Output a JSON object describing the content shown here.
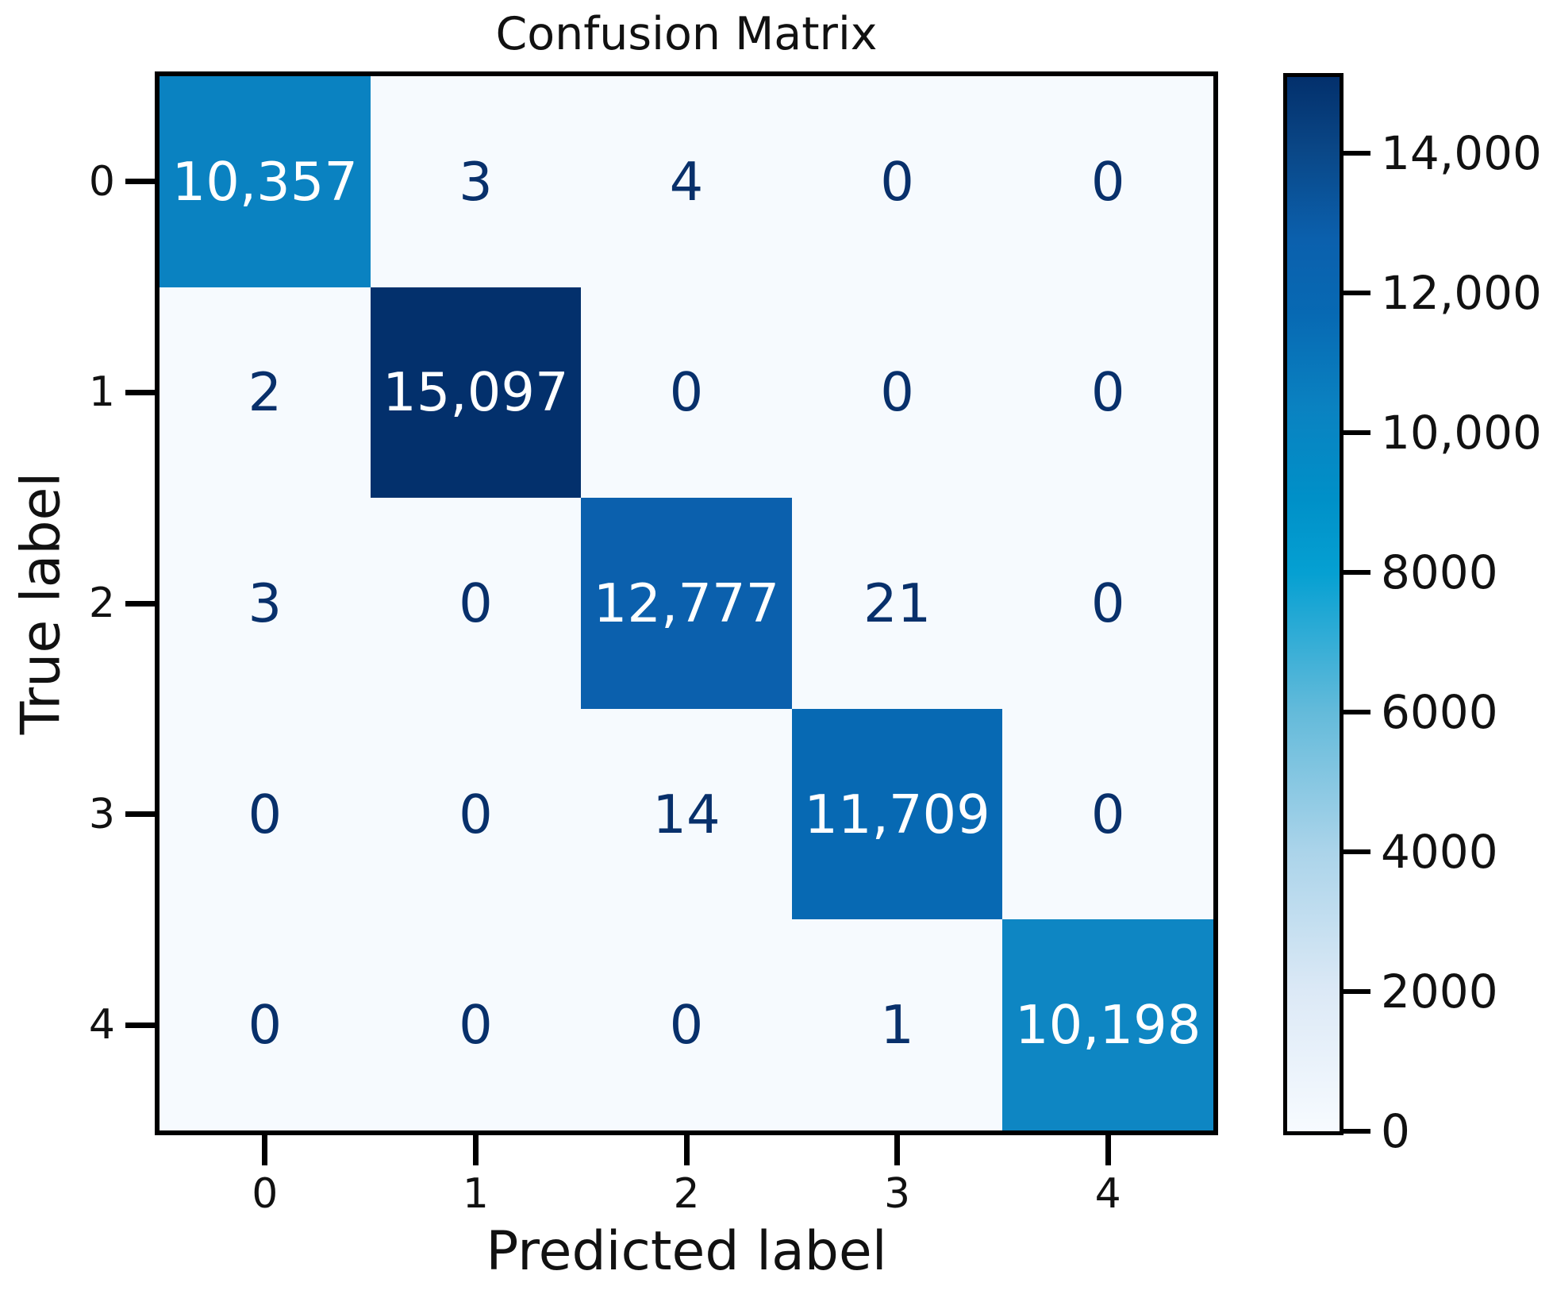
{
  "chart_data": {
    "type": "heatmap",
    "title": "Confusion Matrix",
    "xlabel": "Predicted label",
    "ylabel": "True label",
    "x_tick_labels": [
      "0",
      "1",
      "2",
      "3",
      "4"
    ],
    "y_tick_labels": [
      "0",
      "1",
      "2",
      "3",
      "4"
    ],
    "matrix": [
      [
        10357,
        3,
        4,
        0,
        0
      ],
      [
        2,
        15097,
        0,
        0,
        0
      ],
      [
        3,
        0,
        12777,
        21,
        0
      ],
      [
        0,
        0,
        14,
        11709,
        0
      ],
      [
        0,
        0,
        0,
        1,
        10198
      ]
    ],
    "cell_labels": [
      [
        "10,357",
        "3",
        "4",
        "0",
        "0"
      ],
      [
        "2",
        "15,097",
        "0",
        "0",
        "0"
      ],
      [
        "3",
        "0",
        "12,777",
        "21",
        "0"
      ],
      [
        "0",
        "0",
        "14",
        "11,709",
        "0"
      ],
      [
        "0",
        "0",
        "0",
        "1",
        "10,198"
      ]
    ],
    "vmin": 0,
    "vmax": 15097,
    "colorbar_ticks": [
      {
        "value": 14000,
        "label": "14,000"
      },
      {
        "value": 12000,
        "label": "12,000"
      },
      {
        "value": 10000,
        "label": "10,000"
      },
      {
        "value": 8000,
        "label": "8000"
      },
      {
        "value": 6000,
        "label": "6000"
      },
      {
        "value": 4000,
        "label": "4000"
      },
      {
        "value": 2000,
        "label": "2000"
      },
      {
        "value": 0,
        "label": "0"
      }
    ],
    "legend_position": "right-colorbar",
    "grid": false,
    "colors": {
      "diagonal_cells": [
        "#0a82c1",
        "#03306c",
        "#0b60ad",
        "#0769b3",
        "#0e86c3"
      ],
      "offdiag_cell_bg": "#f6fafe",
      "diagonal_text": "#ffffff",
      "offdiag_text": "#08306b",
      "spine": "#000000",
      "gradient_stops": [
        [
          0.0,
          "#f7fbff"
        ],
        [
          0.132,
          "#dce9f6"
        ],
        [
          0.265,
          "#abd4ea"
        ],
        [
          0.4,
          "#62bada"
        ],
        [
          0.53,
          "#05a0d2"
        ],
        [
          0.6,
          "#0090c8"
        ],
        [
          0.686,
          "#0a82c1"
        ],
        [
          0.776,
          "#0769b3"
        ],
        [
          0.846,
          "#0b60ad"
        ],
        [
          0.93,
          "#0a4787"
        ],
        [
          1.0,
          "#03306c"
        ]
      ]
    }
  }
}
